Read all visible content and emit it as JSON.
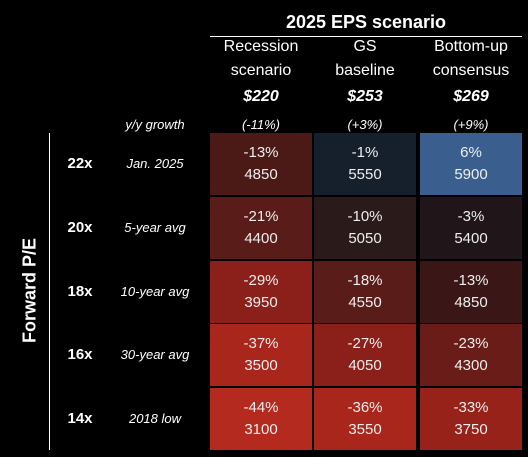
{
  "header": {
    "title": "2025 EPS scenario",
    "row_axis_label": "Forward P/E",
    "growth_label": "y/y growth"
  },
  "columns": [
    {
      "name_lines": [
        "Recession",
        "scenario"
      ],
      "eps": "$220",
      "growth": "(-11%)"
    },
    {
      "name_lines": [
        "GS",
        "baseline"
      ],
      "eps": "$253",
      "growth": "(+3%)"
    },
    {
      "name_lines": [
        "Bottom-up",
        "consensus"
      ],
      "eps": "$269",
      "growth": "(+9%)"
    }
  ],
  "rows": [
    {
      "multiple": "22x",
      "label": "Jan. 2025",
      "cells": [
        {
          "change": "-13%",
          "level": 4850,
          "color": "#4b1a17"
        },
        {
          "change": "-1%",
          "level": 5550,
          "color": "#16202c"
        },
        {
          "change": "6%",
          "level": 5900,
          "color": "#3a5f8f"
        }
      ]
    },
    {
      "multiple": "20x",
      "label": "5-year avg",
      "cells": [
        {
          "change": "-21%",
          "level": 4400,
          "color": "#5a1c18"
        },
        {
          "change": "-10%",
          "level": 5050,
          "color": "#2b1a1a"
        },
        {
          "change": "-3%",
          "level": 5400,
          "color": "#20161a"
        }
      ]
    },
    {
      "multiple": "18x",
      "label": "10-year avg",
      "cells": [
        {
          "change": "-29%",
          "level": 3950,
          "color": "#8a2019"
        },
        {
          "change": "-18%",
          "level": 4550,
          "color": "#5a1c18"
        },
        {
          "change": "-13%",
          "level": 4850,
          "color": "#3a1616"
        }
      ]
    },
    {
      "multiple": "16x",
      "label": "30-year avg",
      "cells": [
        {
          "change": "-37%",
          "level": 3500,
          "color": "#a8261c"
        },
        {
          "change": "-27%",
          "level": 4050,
          "color": "#8a2019"
        },
        {
          "change": "-23%",
          "level": 4300,
          "color": "#6a1d18"
        }
      ]
    },
    {
      "multiple": "14x",
      "label": "2018 low",
      "cells": [
        {
          "change": "-44%",
          "level": 3100,
          "color": "#b52a1e"
        },
        {
          "change": "-36%",
          "level": 3550,
          "color": "#a8261c"
        },
        {
          "change": "-33%",
          "level": 3750,
          "color": "#962219"
        }
      ]
    }
  ]
}
